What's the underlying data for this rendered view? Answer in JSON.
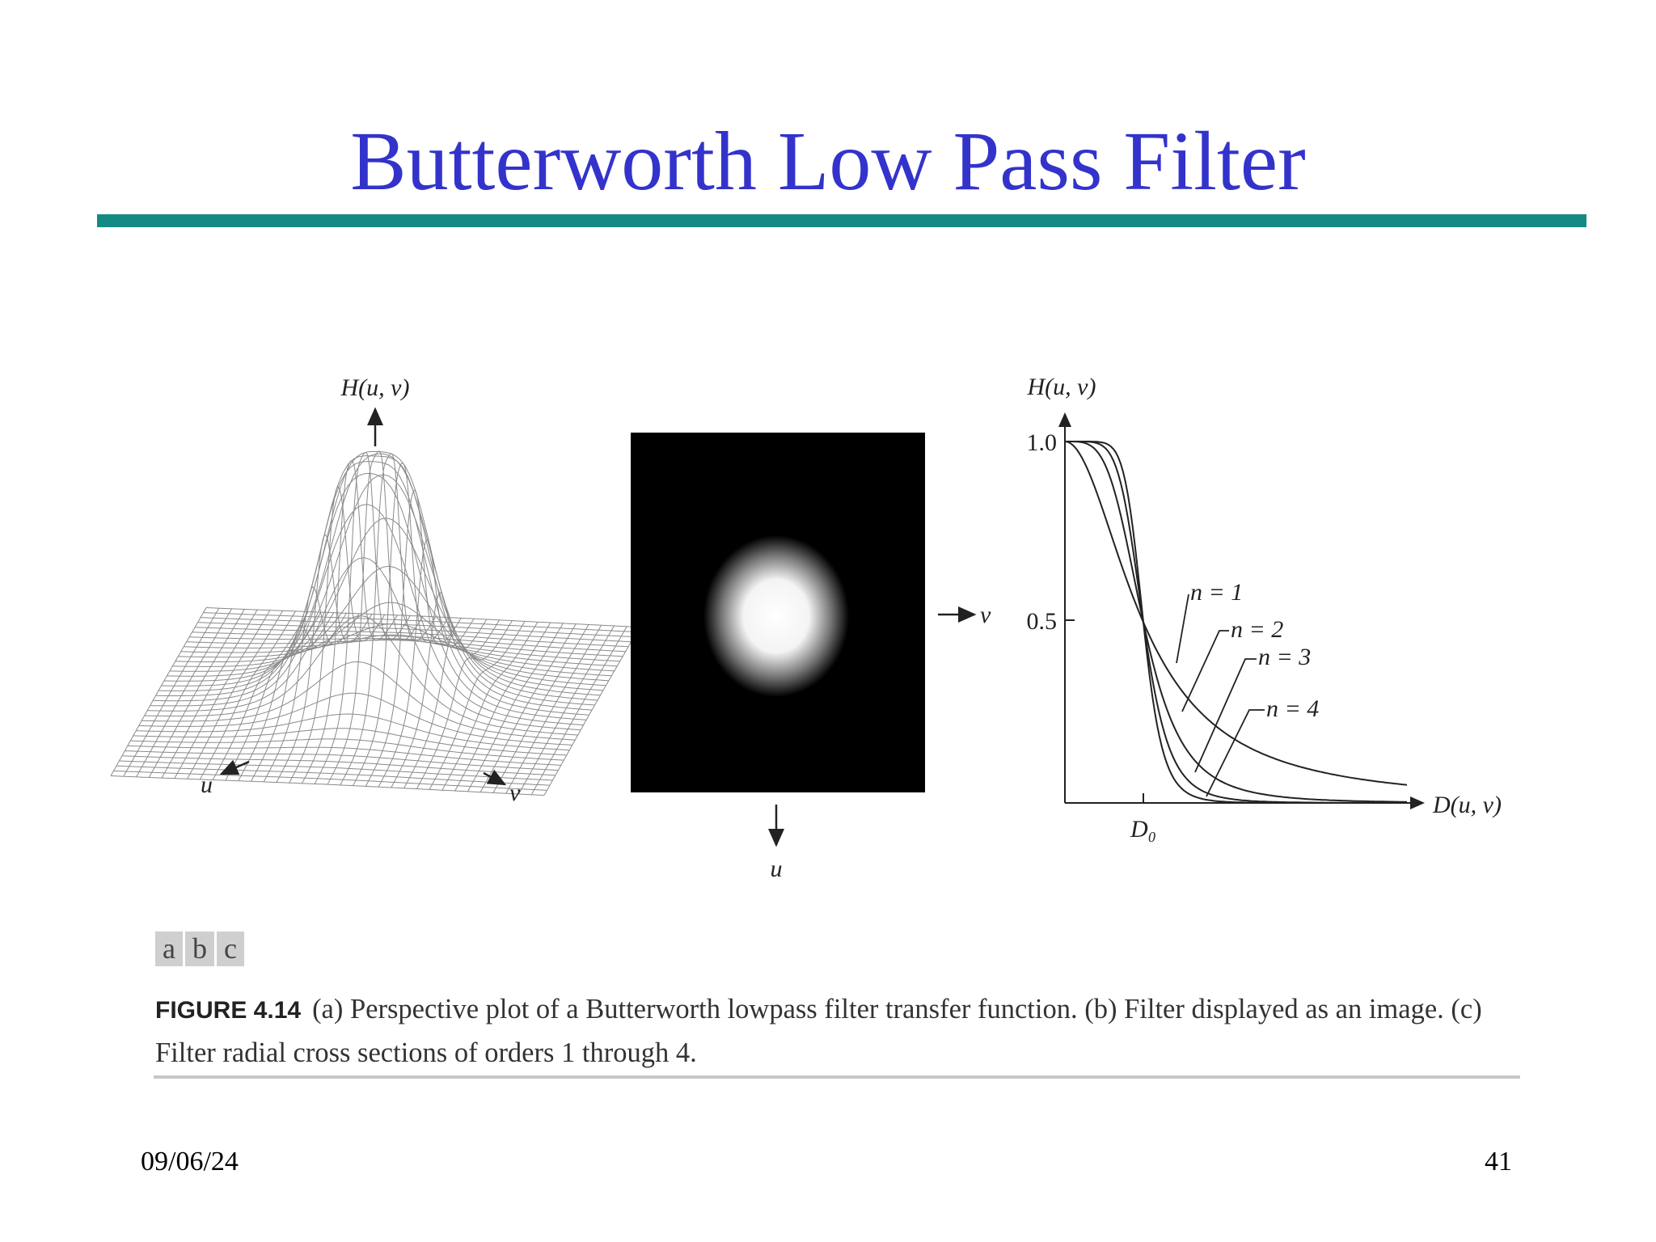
{
  "header": {
    "title": "Butterworth Low Pass Filter"
  },
  "figure": {
    "panel_a": {
      "axis_label": "H(u, v)",
      "u_label": "u",
      "v_label": "v"
    },
    "panel_b": {
      "v_label": "v",
      "u_label": "u"
    },
    "panel_c": {
      "y_label": "H(u, v)",
      "x_label": "D(u, v)",
      "y_tick_top": "1.0",
      "y_tick_mid": "0.5",
      "x_tick": "D₀",
      "curve_labels": [
        "n = 1",
        "n = 2",
        "n = 3",
        "n = 4"
      ]
    },
    "panel_tags": [
      "a",
      "b",
      "c"
    ],
    "caption": {
      "label": "FIGURE 4.14",
      "text": "(a) Perspective plot of a Butterworth lowpass filter transfer function. (b) Filter displayed as an image. (c) Filter radial cross sections of orders 1 through 4."
    }
  },
  "footer": {
    "date": "09/06/24",
    "page": "41"
  }
}
